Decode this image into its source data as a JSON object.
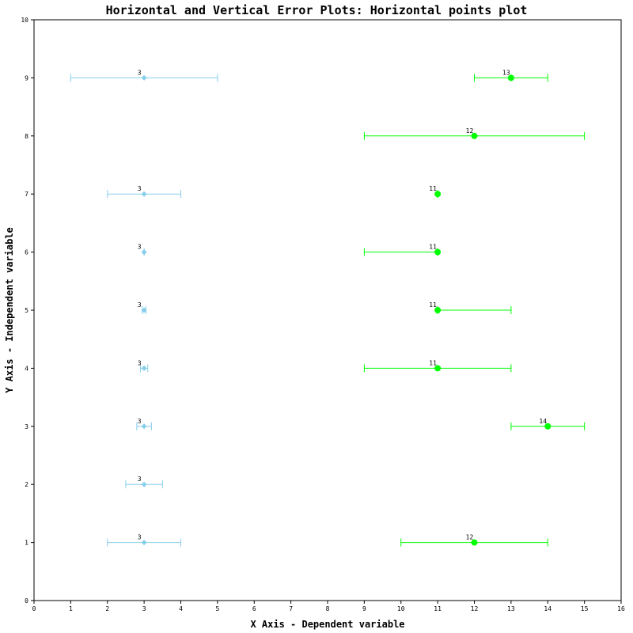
{
  "chart_data": {
    "type": "scatter",
    "title": "Horizontal and Vertical Error Plots: Horizontal points plot",
    "xlabel": "X Axis - Dependent variable",
    "ylabel": "Y Axis - Independent variable",
    "xlim": [
      0,
      16
    ],
    "ylim": [
      0,
      10
    ],
    "xticks": [
      "0",
      "1",
      "2",
      "3",
      "4",
      "5",
      "6",
      "7",
      "8",
      "9",
      "10",
      "11",
      "12",
      "13",
      "14",
      "15",
      "16"
    ],
    "yticks": [
      "0",
      "1",
      "2",
      "3",
      "4",
      "5",
      "6",
      "7",
      "8",
      "9",
      "10"
    ],
    "grid": false,
    "legend": "none",
    "series": [
      {
        "color": "#87CEEB",
        "marker": "diamond",
        "points": [
          {
            "y": 1,
            "x": 3,
            "xerr_low": 2,
            "xerr_high": 4,
            "label": "3"
          },
          {
            "y": 2,
            "x": 3,
            "xerr_low": 2.5,
            "xerr_high": 3.5,
            "label": "3"
          },
          {
            "y": 3,
            "x": 3,
            "xerr_low": 2.8,
            "xerr_high": 3.2,
            "label": "3"
          },
          {
            "y": 4,
            "x": 3,
            "xerr_low": 2.9,
            "xerr_high": 3.1,
            "label": "3"
          },
          {
            "y": 5,
            "x": 3,
            "xerr_low": 2.95,
            "xerr_high": 3.05,
            "label": "3"
          },
          {
            "y": 6,
            "x": 3,
            "xerr_low": 3,
            "xerr_high": 3,
            "label": "3"
          },
          {
            "y": 7,
            "x": 3,
            "xerr_low": 2,
            "xerr_high": 4,
            "label": "3"
          },
          {
            "y": 9,
            "x": 3,
            "xerr_low": 1,
            "xerr_high": 5,
            "label": "3"
          }
        ]
      },
      {
        "color": "#00FF00",
        "marker": "circle",
        "points": [
          {
            "y": 1,
            "x": 12,
            "xerr_low": 10,
            "xerr_high": 14,
            "label": "12"
          },
          {
            "y": 3,
            "x": 14,
            "xerr_low": 13,
            "xerr_high": 15,
            "label": "14"
          },
          {
            "y": 4,
            "x": 11,
            "xerr_low": 9,
            "xerr_high": 13,
            "label": "11"
          },
          {
            "y": 5,
            "x": 11,
            "xerr_low": 11,
            "xerr_high": 13,
            "label": "11"
          },
          {
            "y": 6,
            "x": 11,
            "xerr_low": 9,
            "xerr_high": 11,
            "label": "11"
          },
          {
            "y": 7,
            "x": 11,
            "xerr_low": 11,
            "xerr_high": 11,
            "label": "11"
          },
          {
            "y": 8,
            "x": 12,
            "xerr_low": 9,
            "xerr_high": 15,
            "label": "12"
          },
          {
            "y": 9,
            "x": 13,
            "xerr_low": 12,
            "xerr_high": 14,
            "label": "13"
          }
        ]
      }
    ]
  }
}
